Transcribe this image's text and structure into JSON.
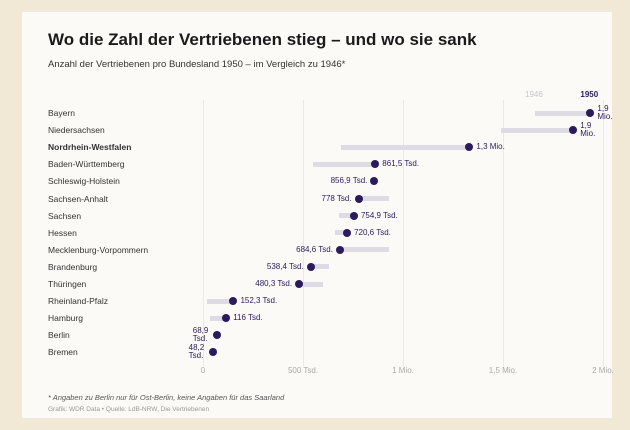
{
  "chart_data": {
    "type": "dumbbell",
    "title": "Wo die Zahl der Vertriebenen stieg – und wo sie sank",
    "subtitle": "Anzahl der Vertriebenen pro Bundesland 1950 – im Vergleich zu 1946*",
    "categories": [
      "Bayern",
      "Niedersachsen",
      "Nordrhein-Westfalen",
      "Baden-Württemberg",
      "Schleswig-Holstein",
      "Sachsen-Anhalt",
      "Sachsen",
      "Hessen",
      "Mecklenburg-Vorpommern",
      "Brandenburg",
      "Thüringen",
      "Rheinland-Pfalz",
      "Hamburg",
      "Berlin",
      "Bremen"
    ],
    "highlight": "Nordrhein-Westfalen",
    "series": [
      {
        "name": "1946",
        "color": "#dedbe4",
        "values": [
          1660000,
          1490000,
          690000,
          550000,
          860000,
          930000,
          680000,
          660000,
          930000,
          630000,
          600000,
          20000,
          35000,
          60000,
          40000
        ]
      },
      {
        "name": "1950",
        "color": "#2b1a5c",
        "values": [
          1937000,
          1851000,
          1332000,
          861500,
          856900,
          778000,
          754900,
          720600,
          684600,
          538400,
          480300,
          152300,
          116000,
          68900,
          48200
        ],
        "value_labels": [
          "1,9 Mio.",
          "1,9 Mio.",
          "1,3 Mio.",
          "861,5 Tsd.",
          "856,9 Tsd.",
          "778 Tsd.",
          "754,9 Tsd.",
          "720,6 Tsd.",
          "684,6 Tsd.",
          "538,4 Tsd.",
          "480,3 Tsd.",
          "152,3 Tsd.",
          "116 Tsd.",
          "68,9 Tsd.",
          "48,2 Tsd."
        ]
      }
    ],
    "xlim": [
      0,
      2000000
    ],
    "xticks": [
      0,
      {
        "value": 500000,
        "label": "500 Tsd."
      },
      {
        "value": 1000000,
        "label": "1 Mio."
      },
      {
        "value": 1500000,
        "label": "1,5 Mio."
      },
      {
        "value": 2000000,
        "label": "2 Mio."
      }
    ],
    "grid": true,
    "footnote": "* Angaben zu Berlin nur für Ost-Berlin, keine Angaben für das Saarland",
    "source": "Grafik: WDR Data • Quelle: LdB-NRW, Die Vertriebenen"
  }
}
